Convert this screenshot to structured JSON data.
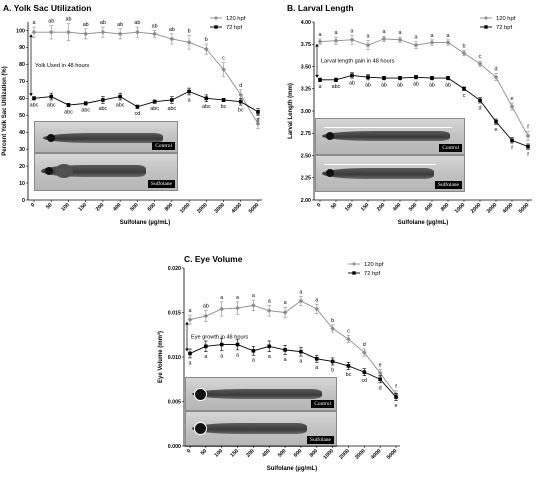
{
  "chart_data": [
    {
      "id": "a",
      "type": "line",
      "title": "A.  Yolk Sac Utilization",
      "xlabel": "Sulfolane (µg/mL)",
      "ylabel": "Percent Yolk Sac Utilization (%)",
      "categories": [
        "0",
        "50",
        "100",
        "150",
        "200",
        "400",
        "500",
        "600",
        "800",
        "1000",
        "2000",
        "3000",
        "4000",
        "5000"
      ],
      "ylim": [
        0,
        105
      ],
      "yticks": [
        0,
        10,
        20,
        30,
        40,
        50,
        60,
        70,
        80,
        90,
        100
      ],
      "legend_position": "top-right",
      "annotation": "Yolk Used in 48 hours",
      "series": [
        {
          "name": "120 hpf",
          "color": "#8c8c8c",
          "marker": "diamond",
          "values": [
            99,
            99,
            99,
            98,
            99,
            98,
            99,
            98,
            95,
            93,
            89,
            77,
            62,
            45
          ],
          "errors": [
            3,
            4,
            5,
            3,
            3,
            3,
            3,
            2,
            3,
            4,
            3,
            4,
            3,
            3
          ],
          "letters": [
            "a",
            "ab",
            "ab",
            "ab",
            "ab",
            "ab",
            "ab",
            "ab",
            "ab",
            "b",
            "b",
            "c",
            "d",
            "d"
          ]
        },
        {
          "name": "72 hpf",
          "color": "#000000",
          "marker": "square",
          "values": [
            60,
            61,
            56,
            57,
            59,
            61,
            55,
            58,
            59,
            64,
            60,
            59,
            58,
            52
          ],
          "errors": [
            1,
            2,
            1,
            1,
            2,
            2,
            1,
            1,
            2,
            2,
            2,
            1,
            2,
            2
          ],
          "letters": [
            "abc",
            "abc",
            "abc",
            "abc",
            "abc",
            "abc",
            "cd",
            "abc",
            "abc",
            "a",
            "abc",
            "bc",
            "bc",
            "d"
          ]
        }
      ],
      "image_labels": [
        "Control",
        "Sulfolane"
      ]
    },
    {
      "id": "b",
      "type": "line",
      "title": "B.  Larval Length",
      "xlabel": "Sulfolane (µg/mL)",
      "ylabel": "Larval Length (mm)",
      "categories": [
        "0",
        "50",
        "100",
        "150",
        "200",
        "400",
        "500",
        "600",
        "800",
        "1000",
        "2000",
        "3000",
        "4000",
        "5000"
      ],
      "ylim": [
        2.0,
        4.0
      ],
      "yticks": [
        "2.00",
        "2.25",
        "2.50",
        "2.75",
        "3.00",
        "3.25",
        "3.50",
        "3.75",
        "4.00"
      ],
      "legend_position": "top-right",
      "annotation": "Larval length gain in 48 hours",
      "series": [
        {
          "name": "120 hpf",
          "color": "#8c8c8c",
          "marker": "diamond",
          "values": [
            3.78,
            3.79,
            3.8,
            3.74,
            3.81,
            3.8,
            3.74,
            3.77,
            3.77,
            3.65,
            3.53,
            3.38,
            3.05,
            2.72
          ],
          "errors": [
            0.03,
            0.04,
            0.05,
            0.05,
            0.03,
            0.03,
            0.04,
            0.03,
            0.03,
            0.03,
            0.03,
            0.04,
            0.04,
            0.05
          ],
          "letters": [
            "a",
            "a",
            "a",
            "a",
            "a",
            "a",
            "a",
            "a",
            "a",
            "b",
            "c",
            "d",
            "e",
            "f"
          ]
        },
        {
          "name": "72 hpf",
          "color": "#000000",
          "marker": "square",
          "values": [
            3.35,
            3.35,
            3.4,
            3.38,
            3.37,
            3.37,
            3.38,
            3.37,
            3.37,
            3.25,
            3.12,
            2.88,
            2.67,
            2.6
          ],
          "errors": [
            0.02,
            0.02,
            0.03,
            0.03,
            0.02,
            0.02,
            0.02,
            0.02,
            0.02,
            0.02,
            0.03,
            0.03,
            0.03,
            0.03
          ],
          "letters": [
            "a",
            "abc",
            "ab",
            "ab",
            "ab",
            "ab",
            "ab",
            "ab",
            "ab",
            "c",
            "d",
            "e",
            "f",
            "f"
          ]
        }
      ],
      "image_labels": [
        "Control",
        "Sulfolane"
      ]
    },
    {
      "id": "c",
      "type": "line",
      "title": "C.  Eye Volume",
      "xlabel": "Sulfolane (µg/mL)",
      "ylabel": "Eye Volume (mm³)",
      "categories": [
        "0",
        "50",
        "100",
        "150",
        "200",
        "400",
        "500",
        "600",
        "800",
        "1000",
        "2000",
        "3000",
        "4000",
        "5000"
      ],
      "ylim": [
        0,
        0.02
      ],
      "yticks": [
        "0.000",
        "0.005",
        "0.010",
        "0.015",
        "0.020"
      ],
      "legend_position": "top-right",
      "annotation": "Eye growth in 48 hours",
      "series": [
        {
          "name": "120 hpf",
          "color": "#8c8c8c",
          "marker": "diamond",
          "values": [
            0.0142,
            0.0146,
            0.0154,
            0.0155,
            0.0158,
            0.0152,
            0.015,
            0.0163,
            0.0154,
            0.0132,
            0.012,
            0.0105,
            0.0082,
            0.0058
          ],
          "errors": [
            0.0005,
            0.0006,
            0.0008,
            0.0007,
            0.0006,
            0.0006,
            0.0006,
            0.0005,
            0.0005,
            0.0004,
            0.0004,
            0.0004,
            0.0004,
            0.0004
          ],
          "letters": [
            "a",
            "ab",
            "a",
            "a",
            "a",
            "a",
            "a",
            "a",
            "a",
            "b",
            "c",
            "d",
            "e",
            "f"
          ]
        },
        {
          "name": "72 hpf",
          "color": "#000000",
          "marker": "square",
          "values": [
            0.0104,
            0.0112,
            0.0114,
            0.0114,
            0.0107,
            0.0112,
            0.0108,
            0.0106,
            0.0098,
            0.0095,
            0.009,
            0.0083,
            0.0075,
            0.0055
          ],
          "errors": [
            0.0005,
            0.0006,
            0.0007,
            0.0006,
            0.0005,
            0.0006,
            0.0005,
            0.0005,
            0.0004,
            0.0004,
            0.0004,
            0.0004,
            0.0004,
            0.0004
          ],
          "letters": [
            "a",
            "a",
            "a",
            "a",
            "a",
            "a",
            "a",
            "a",
            "a",
            "b",
            "bc",
            "cd",
            "d",
            "e"
          ]
        }
      ],
      "image_labels": [
        "Control",
        "Sulfolane"
      ]
    }
  ]
}
